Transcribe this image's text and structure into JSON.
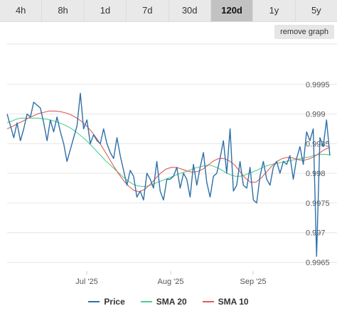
{
  "range_buttons": [
    {
      "label": "4h",
      "active": false
    },
    {
      "label": "8h",
      "active": false
    },
    {
      "label": "1d",
      "active": false
    },
    {
      "label": "7d",
      "active": false
    },
    {
      "label": "30d",
      "active": false
    },
    {
      "label": "120d",
      "active": true
    },
    {
      "label": "1y",
      "active": false
    },
    {
      "label": "5y",
      "active": false
    }
  ],
  "remove_graph_label": "remove graph",
  "colors": {
    "price": "#2f6fa6",
    "sma20": "#4ccf8f",
    "sma10": "#e05a5a"
  },
  "chart_data": {
    "type": "line",
    "title": "",
    "xlabel": "",
    "ylabel": "",
    "x_ticks": [
      "Jul '25",
      "Aug '25",
      "Sep '25"
    ],
    "y_ticks": [
      "0.9965",
      "0.997",
      "0.9975",
      "0.998",
      "0.9985",
      "0.999",
      "0.9995"
    ],
    "ylim": [
      0.99635,
      1.00018
    ],
    "grid": true,
    "legend_position": "bottom",
    "legend": [
      "Price",
      "SMA 20",
      "SMA 10"
    ],
    "series": [
      {
        "name": "Price",
        "values": [
          0.999,
          0.9988,
          0.9986,
          0.99885,
          0.99855,
          0.99875,
          0.999,
          0.99895,
          0.9992,
          0.99915,
          0.9991,
          0.99885,
          0.99855,
          0.9989,
          0.9987,
          0.99895,
          0.9987,
          0.9985,
          0.9982,
          0.9984,
          0.9986,
          0.9988,
          0.99935,
          0.99875,
          0.9989,
          0.9985,
          0.99865,
          0.99855,
          0.9985,
          0.99875,
          0.9985,
          0.99835,
          0.99825,
          0.9986,
          0.9983,
          0.99805,
          0.9978,
          0.99805,
          0.99795,
          0.9976,
          0.9977,
          0.99755,
          0.998,
          0.9979,
          0.99775,
          0.9982,
          0.9977,
          0.99755,
          0.9979,
          0.9979,
          0.99795,
          0.9981,
          0.99775,
          0.998,
          0.9979,
          0.9976,
          0.99815,
          0.9978,
          0.9981,
          0.99835,
          0.99785,
          0.9976,
          0.99795,
          0.998,
          0.99825,
          0.99855,
          0.998,
          0.99875,
          0.9977,
          0.9978,
          0.9982,
          0.9978,
          0.99775,
          0.9981,
          0.99755,
          0.9975,
          0.99795,
          0.9982,
          0.9979,
          0.9978,
          0.9981,
          0.9982,
          0.998,
          0.9982,
          0.99815,
          0.9983,
          0.9979,
          0.99825,
          0.99845,
          0.99815,
          0.9987,
          0.99855,
          0.99875,
          0.9966,
          0.9986,
          0.99845,
          0.9989,
          0.9983
        ]
      },
      {
        "name": "SMA 20",
        "values": [
          0.99885,
          0.99888,
          0.99891,
          0.99893,
          0.99893,
          0.99893,
          0.99893,
          0.99893,
          0.99892,
          0.99891,
          0.99889,
          0.99887,
          0.99884,
          0.99881,
          0.99877,
          0.99872,
          0.99866,
          0.9986,
          0.99853,
          0.99845,
          0.99837,
          0.99829,
          0.99821,
          0.99814,
          0.99807,
          0.998,
          0.99793,
          0.99787,
          0.99782,
          0.99779,
          0.99778,
          0.99778,
          0.9978,
          0.99783,
          0.99786,
          0.99789,
          0.99792,
          0.99795,
          0.99798,
          0.99801,
          0.99803,
          0.99806,
          0.99809,
          0.99811,
          0.99813,
          0.99814,
          0.99812,
          0.99809,
          0.99805,
          0.998,
          0.99797,
          0.99795,
          0.99795,
          0.99797,
          0.998,
          0.99803,
          0.99806,
          0.9981,
          0.99813,
          0.99815,
          0.99817,
          0.99818,
          0.9982,
          0.99821,
          0.99823,
          0.99824,
          0.99826,
          0.99827,
          0.99829,
          0.99831,
          0.99832,
          0.99832,
          0.99831
        ]
      },
      {
        "name": "SMA 10",
        "values": [
          0.99875,
          0.99879,
          0.99884,
          0.99888,
          0.99893,
          0.99897,
          0.99901,
          0.99903,
          0.99905,
          0.99905,
          0.99904,
          0.99902,
          0.99899,
          0.99894,
          0.99888,
          0.9988,
          0.9987,
          0.99858,
          0.99844,
          0.99829,
          0.99814,
          0.998,
          0.99788,
          0.99778,
          0.99771,
          0.99769,
          0.99773,
          0.99781,
          0.99791,
          0.998,
          0.99807,
          0.9981,
          0.9981,
          0.99807,
          0.99804,
          0.99802,
          0.99803,
          0.99807,
          0.99814,
          0.99821,
          0.99825,
          0.99825,
          0.99821,
          0.99814,
          0.99803,
          0.99792,
          0.99785,
          0.99785,
          0.99792,
          0.99802,
          0.99812,
          0.9982,
          0.99825,
          0.99827,
          0.99826,
          0.99823,
          0.99822,
          0.99824,
          0.99828,
          0.99834,
          0.9984,
          0.99844
        ]
      }
    ]
  }
}
